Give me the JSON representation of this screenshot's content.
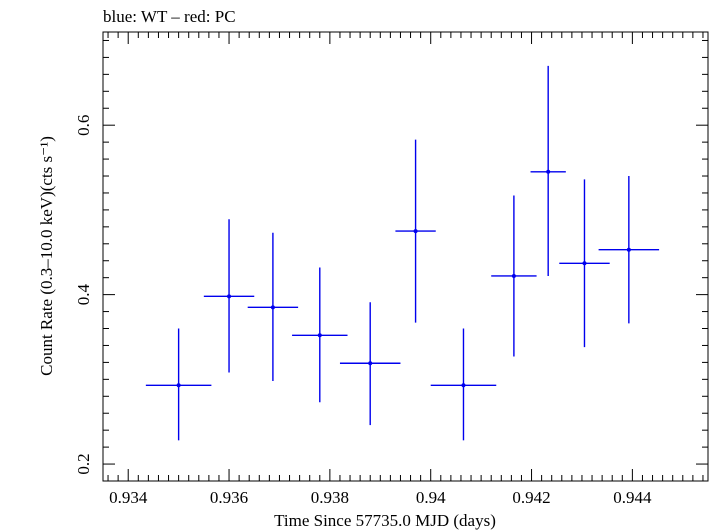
{
  "chart_data": {
    "type": "scatter",
    "title": "blue: WT – red: PC",
    "xlabel": "Time Since 57735.0 MJD (days)",
    "ylabel": "Count Rate (0.3–10.0 keV)(cts s⁻¹)",
    "xlim": [
      0.9335,
      0.9455
    ],
    "ylim": [
      0.18,
      0.71
    ],
    "x_ticks": [
      0.934,
      0.936,
      0.938,
      0.94,
      0.942,
      0.944
    ],
    "x_tick_labels": [
      "0.934",
      "0.936",
      "0.938",
      "0.94",
      "0.942",
      "0.944"
    ],
    "y_ticks": [
      0.2,
      0.4,
      0.6
    ],
    "y_tick_labels": [
      "0.2",
      "0.4",
      "0.6"
    ],
    "grid": false,
    "series": [
      {
        "name": "WT",
        "color": "#0000ee",
        "points": [
          {
            "x": 0.935,
            "xerr": 0.00065,
            "y": 0.293,
            "yerr_low": 0.065,
            "yerr_high": 0.067
          },
          {
            "x": 0.936,
            "xerr": 0.0005,
            "y": 0.398,
            "yerr_low": 0.09,
            "yerr_high": 0.091
          },
          {
            "x": 0.93687,
            "xerr": 0.0005,
            "y": 0.385,
            "yerr_low": 0.087,
            "yerr_high": 0.088
          },
          {
            "x": 0.9378,
            "xerr": 0.00055,
            "y": 0.352,
            "yerr_low": 0.079,
            "yerr_high": 0.08
          },
          {
            "x": 0.9388,
            "xerr": 0.0006,
            "y": 0.319,
            "yerr_low": 0.073,
            "yerr_high": 0.072
          },
          {
            "x": 0.9397,
            "xerr": 0.0004,
            "y": 0.475,
            "yerr_low": 0.108,
            "yerr_high": 0.108
          },
          {
            "x": 0.94065,
            "xerr": 0.00065,
            "y": 0.293,
            "yerr_low": 0.065,
            "yerr_high": 0.067
          },
          {
            "x": 0.94165,
            "xerr": 0.00045,
            "y": 0.422,
            "yerr_low": 0.095,
            "yerr_high": 0.095
          },
          {
            "x": 0.94233,
            "xerr": 0.00035,
            "y": 0.545,
            "yerr_low": 0.123,
            "yerr_high": 0.125
          },
          {
            "x": 0.94305,
            "xerr": 0.0005,
            "y": 0.437,
            "yerr_low": 0.099,
            "yerr_high": 0.099
          },
          {
            "x": 0.94393,
            "xerr": 0.0006,
            "y": 0.453,
            "yerr_low": 0.087,
            "yerr_high": 0.087
          }
        ]
      }
    ]
  }
}
